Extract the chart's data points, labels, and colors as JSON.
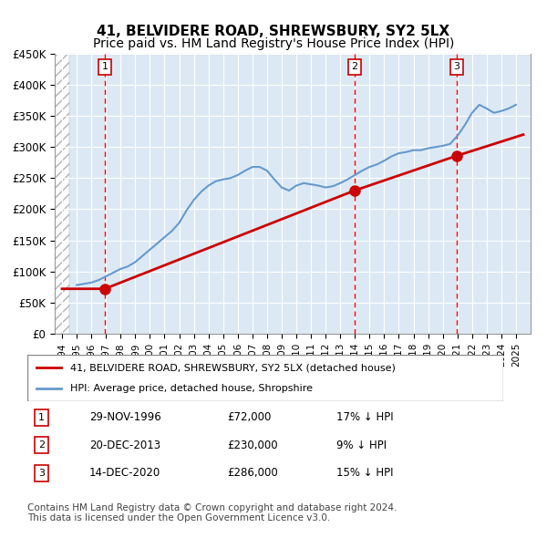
{
  "title": "41, BELVIDERE ROAD, SHREWSBURY, SY2 5LX",
  "subtitle": "Price paid vs. HM Land Registry's House Price Index (HPI)",
  "title_fontsize": 11,
  "subtitle_fontsize": 10,
  "xlabel": "",
  "ylabel": "",
  "ylim": [
    0,
    450000
  ],
  "yticks": [
    0,
    50000,
    100000,
    150000,
    200000,
    250000,
    300000,
    350000,
    400000,
    450000
  ],
  "ytick_labels": [
    "£0",
    "£50K",
    "£100K",
    "£150K",
    "£200K",
    "£250K",
    "£300K",
    "£350K",
    "£400K",
    "£450K"
  ],
  "xlim_start": 1993.5,
  "xlim_end": 2026.0,
  "bg_color": "#dce9f5",
  "grid_color": "#ffffff",
  "hatch_region_end": 1994.5,
  "sales": [
    {
      "date_num": 1996.92,
      "price": 72000,
      "label": "1"
    },
    {
      "date_num": 2013.97,
      "price": 230000,
      "label": "2"
    },
    {
      "date_num": 2020.96,
      "price": 286000,
      "label": "3"
    }
  ],
  "sale_color": "#cc0000",
  "vline_color": "#ff0000",
  "hpi_color": "#6699cc",
  "price_line_color": "#cc0000",
  "hpi_data_x": [
    1995.0,
    1995.5,
    1996.0,
    1996.5,
    1997.0,
    1997.5,
    1998.0,
    1998.5,
    1999.0,
    1999.5,
    2000.0,
    2000.5,
    2001.0,
    2001.5,
    2002.0,
    2002.5,
    2003.0,
    2003.5,
    2004.0,
    2004.5,
    2005.0,
    2005.5,
    2006.0,
    2006.5,
    2007.0,
    2007.5,
    2008.0,
    2008.5,
    2009.0,
    2009.5,
    2010.0,
    2010.5,
    2011.0,
    2011.5,
    2012.0,
    2012.5,
    2013.0,
    2013.5,
    2014.0,
    2014.5,
    2015.0,
    2015.5,
    2016.0,
    2016.5,
    2017.0,
    2017.5,
    2018.0,
    2018.5,
    2019.0,
    2019.5,
    2020.0,
    2020.5,
    2021.0,
    2021.5,
    2022.0,
    2022.5,
    2023.0,
    2023.5,
    2024.0,
    2024.5,
    2025.0
  ],
  "hpi_data_y": [
    78000,
    80000,
    82000,
    86000,
    92000,
    98000,
    104000,
    108000,
    115000,
    125000,
    135000,
    145000,
    155000,
    165000,
    178000,
    198000,
    215000,
    228000,
    238000,
    245000,
    248000,
    250000,
    255000,
    262000,
    268000,
    268000,
    262000,
    248000,
    235000,
    230000,
    238000,
    242000,
    240000,
    238000,
    235000,
    237000,
    242000,
    248000,
    255000,
    262000,
    268000,
    272000,
    278000,
    285000,
    290000,
    292000,
    295000,
    295000,
    298000,
    300000,
    302000,
    305000,
    318000,
    335000,
    355000,
    368000,
    362000,
    355000,
    358000,
    362000,
    368000
  ],
  "price_paid_x": [
    1994.0,
    1996.92,
    2013.97,
    2020.96,
    2025.5
  ],
  "price_paid_y": [
    72000,
    72000,
    230000,
    286000,
    320000
  ],
  "legend_entries": [
    {
      "label": "41, BELVIDERE ROAD, SHREWSBURY, SY2 5LX (detached house)",
      "color": "#cc0000",
      "lw": 2
    },
    {
      "label": "HPI: Average price, detached house, Shropshire",
      "color": "#6699cc",
      "lw": 2
    }
  ],
  "table_rows": [
    {
      "num": "1",
      "date": "29-NOV-1996",
      "price": "£72,000",
      "pct": "17% ↓ HPI"
    },
    {
      "num": "2",
      "date": "20-DEC-2013",
      "price": "£230,000",
      "pct": "9% ↓ HPI"
    },
    {
      "num": "3",
      "date": "14-DEC-2020",
      "price": "£286,000",
      "pct": "15% ↓ HPI"
    }
  ],
  "footer": "Contains HM Land Registry data © Crown copyright and database right 2024.\nThis data is licensed under the Open Government Licence v3.0.",
  "footer_fontsize": 7.5
}
